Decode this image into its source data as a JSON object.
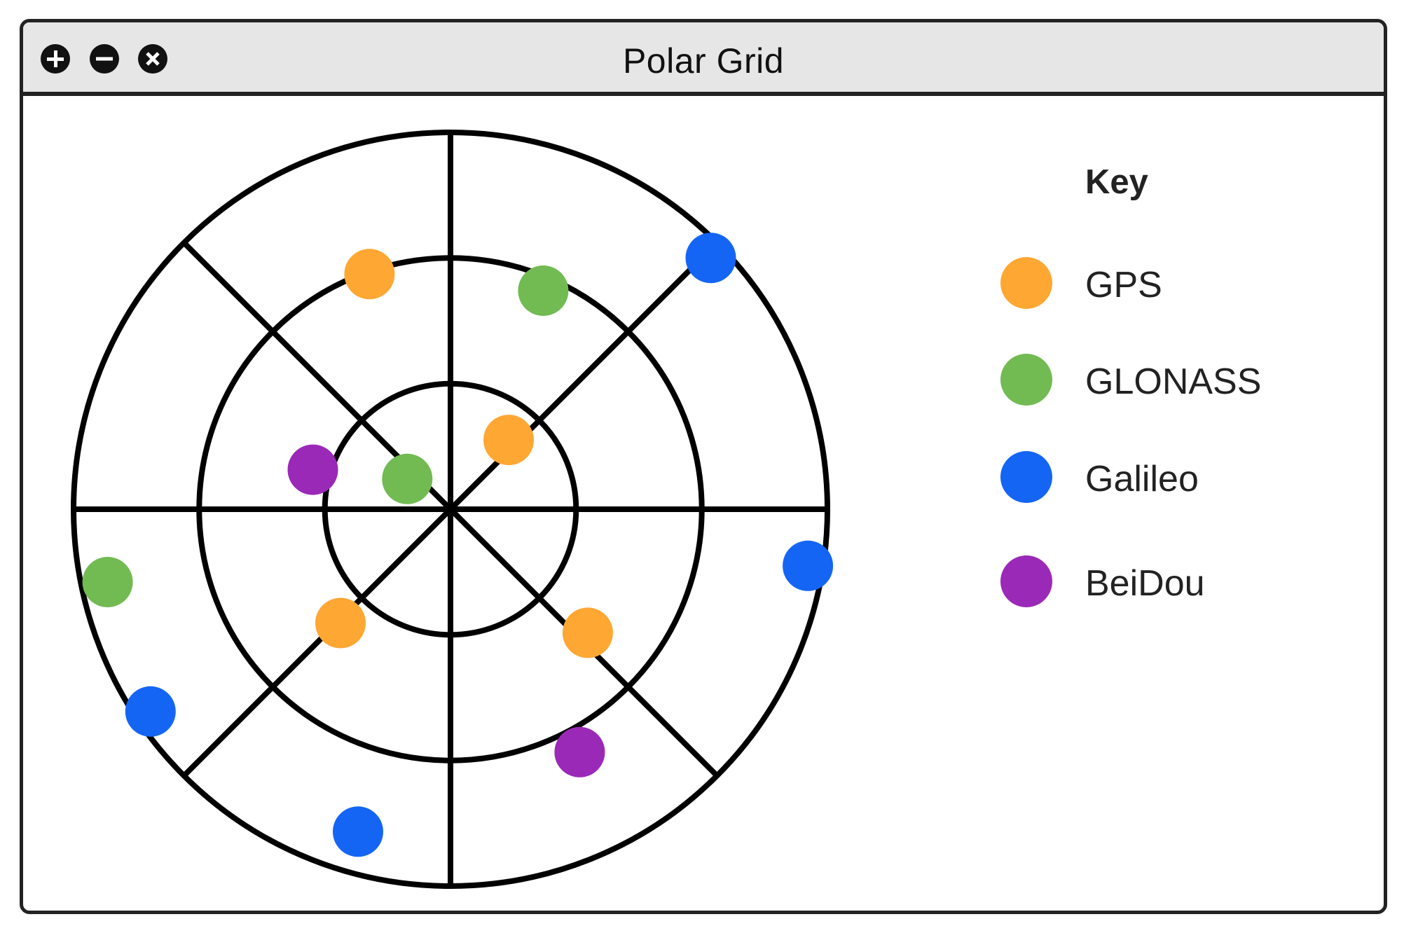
{
  "window": {
    "title": "Polar Grid",
    "controls": [
      {
        "name": "zoom-in-button",
        "icon": "plus-icon"
      },
      {
        "name": "zoom-out-button",
        "icon": "minus-icon"
      },
      {
        "name": "close-button",
        "icon": "close-icon"
      }
    ]
  },
  "legend": {
    "title": "Key",
    "items": [
      {
        "label": "GPS",
        "color": "#ffa733"
      },
      {
        "label": "GLONASS",
        "color": "#72bb53"
      },
      {
        "label": "Galileo",
        "color": "#1565f5"
      },
      {
        "label": "BeiDou",
        "color": "#9a29b8"
      }
    ]
  },
  "chart_data": {
    "type": "scatter",
    "coordinate_system": "polar",
    "rings": 3,
    "spokes": 8,
    "angle_unit": "degrees (0 = up, clockwise)",
    "radius_unit": "fraction of outer ring",
    "series": [
      {
        "name": "GPS",
        "color": "#ffa733",
        "points": [
          {
            "angle": 341,
            "radius": 0.66
          },
          {
            "angle": 40,
            "radius": 0.24
          },
          {
            "angle": 224,
            "radius": 0.42
          },
          {
            "angle": 132,
            "radius": 0.49
          }
        ]
      },
      {
        "name": "GLONASS",
        "color": "#72bb53",
        "points": [
          {
            "angle": 23,
            "radius": 0.63
          },
          {
            "angle": 305,
            "radius": 0.14
          },
          {
            "angle": 258,
            "radius": 0.93
          }
        ]
      },
      {
        "name": "Galileo",
        "color": "#1565f5",
        "points": [
          {
            "angle": 46,
            "radius": 0.96
          },
          {
            "angle": 99,
            "radius": 0.96
          },
          {
            "angle": 236,
            "radius": 0.96
          },
          {
            "angle": 196,
            "radius": 0.89
          }
        ]
      },
      {
        "name": "BeiDou",
        "color": "#9a29b8",
        "points": [
          {
            "angle": 286,
            "radius": 0.38
          },
          {
            "angle": 152,
            "radius": 0.73
          }
        ]
      }
    ]
  }
}
